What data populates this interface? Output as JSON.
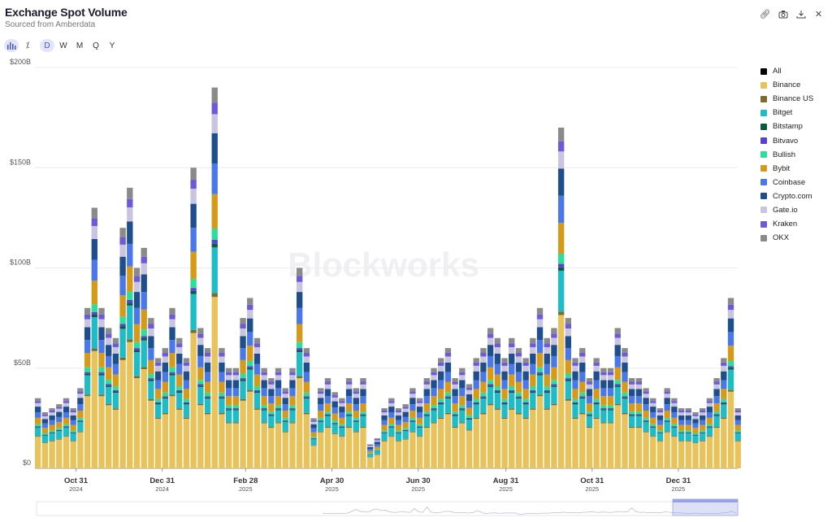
{
  "header": {
    "title": "Exchange Spot Volume",
    "subtitle": "Sourced from Amberdata"
  },
  "controls": {
    "chart_type_icon": "bar-chart-icon",
    "percent_icon": "percent-icon",
    "intervals": [
      "D",
      "W",
      "M",
      "Q",
      "Y"
    ],
    "active_interval": "D"
  },
  "actions": [
    {
      "icon": "link-icon"
    },
    {
      "icon": "camera-icon"
    },
    {
      "icon": "download-icon"
    },
    {
      "icon": "close-icon"
    }
  ],
  "watermark": "Blockworks",
  "chart_data": {
    "type": "bar",
    "stacked": true,
    "title": "Exchange Spot Volume",
    "xlabel": "",
    "ylabel": "",
    "ylim": [
      0,
      200
    ],
    "y_ticks": [
      "$0",
      "$50B",
      "$100B",
      "$150B",
      "$200B"
    ],
    "y_tick_values": [
      0,
      50,
      100,
      150,
      200
    ],
    "x_ticks": [
      {
        "label": "Oct 31",
        "year": "2024",
        "date": "2024-10-31"
      },
      {
        "label": "Dec 31",
        "year": "2024",
        "date": "2024-12-31"
      },
      {
        "label": "Feb 28",
        "year": "2025",
        "date": "2025-02-28"
      },
      {
        "label": "Apr 30",
        "year": "2025",
        "date": "2025-04-30"
      },
      {
        "label": "Jun 30",
        "year": "2025",
        "date": "2025-06-30"
      },
      {
        "label": "Aug 31",
        "year": "2025",
        "date": "2025-08-31"
      },
      {
        "label": "Oct 31",
        "year": "2025",
        "date": "2025-10-31"
      },
      {
        "label": "Dec 31",
        "year": "2025",
        "date": "2025-12-31"
      }
    ],
    "x_range": [
      "2024-10-02",
      "2026-02-11"
    ],
    "grid": true,
    "legend_position": "right",
    "unit": "USD billions",
    "legend": [
      {
        "name": "All",
        "color": "#000000"
      },
      {
        "name": "Binance",
        "color": "#e8c25a"
      },
      {
        "name": "Binance US",
        "color": "#7d6b2e"
      },
      {
        "name": "Bitget",
        "color": "#1fbcc6"
      },
      {
        "name": "Bitstamp",
        "color": "#0f5a3e"
      },
      {
        "name": "Bitvavo",
        "color": "#5b3fd6"
      },
      {
        "name": "Bullish",
        "color": "#2fdc9a"
      },
      {
        "name": "Bybit",
        "color": "#d69a1a"
      },
      {
        "name": "Coinbase",
        "color": "#4a78e8"
      },
      {
        "name": "Crypto.com",
        "color": "#1e4f8c"
      },
      {
        "name": "Gate.io",
        "color": "#c9c4e0"
      },
      {
        "name": "Kraken",
        "color": "#6c5ad8"
      },
      {
        "name": "OKX",
        "color": "#8a8a8a"
      }
    ],
    "series_share_pct": {
      "Binance": 45,
      "Binance US": 1,
      "Bitget": 12,
      "Bitstamp": 1,
      "Bitvavo": 1,
      "Bullish": 3,
      "Bybit": 9,
      "Coinbase": 8,
      "Crypto.com": 8,
      "Gate.io": 5,
      "Kraken": 3,
      "OKX": 4
    },
    "x": [
      "2024-10-02",
      "2024-10-07",
      "2024-10-12",
      "2024-10-17",
      "2024-10-22",
      "2024-10-27",
      "2024-11-01",
      "2024-11-06",
      "2024-11-11",
      "2024-11-16",
      "2024-11-21",
      "2024-11-26",
      "2024-12-01",
      "2024-12-06",
      "2024-12-11",
      "2024-12-16",
      "2024-12-21",
      "2024-12-26",
      "2024-12-31",
      "2025-01-05",
      "2025-01-10",
      "2025-01-15",
      "2025-01-20",
      "2025-01-25",
      "2025-01-30",
      "2025-02-04",
      "2025-02-09",
      "2025-02-14",
      "2025-02-19",
      "2025-02-24",
      "2025-03-01",
      "2025-03-06",
      "2025-03-11",
      "2025-03-16",
      "2025-03-21",
      "2025-03-26",
      "2025-03-31",
      "2025-04-05",
      "2025-04-10",
      "2025-04-15",
      "2025-04-20",
      "2025-04-25",
      "2025-04-30",
      "2025-05-05",
      "2025-05-10",
      "2025-05-15",
      "2025-05-20",
      "2025-05-25",
      "2025-05-30",
      "2025-06-04",
      "2025-06-09",
      "2025-06-14",
      "2025-06-19",
      "2025-06-24",
      "2025-06-29",
      "2025-07-04",
      "2025-07-09",
      "2025-07-14",
      "2025-07-19",
      "2025-07-24",
      "2025-07-29",
      "2025-08-03",
      "2025-08-08",
      "2025-08-13",
      "2025-08-18",
      "2025-08-23",
      "2025-08-28",
      "2025-09-02",
      "2025-09-07",
      "2025-09-12",
      "2025-09-17",
      "2025-09-22",
      "2025-09-27",
      "2025-10-02",
      "2025-10-07",
      "2025-10-12",
      "2025-10-17",
      "2025-10-22",
      "2025-10-27",
      "2025-11-01",
      "2025-11-06",
      "2025-11-11",
      "2025-11-16",
      "2025-11-21",
      "2025-11-26",
      "2025-12-01",
      "2025-12-06",
      "2025-12-11",
      "2025-12-16",
      "2025-12-21",
      "2025-12-26",
      "2025-12-31",
      "2026-01-05",
      "2026-01-10",
      "2026-01-15",
      "2026-01-20",
      "2026-01-25",
      "2026-01-30",
      "2026-02-04",
      "2026-02-09"
    ],
    "totals": [
      35,
      28,
      30,
      32,
      35,
      30,
      40,
      80,
      130,
      80,
      70,
      65,
      120,
      140,
      100,
      110,
      75,
      55,
      60,
      80,
      65,
      55,
      150,
      70,
      60,
      190,
      60,
      50,
      50,
      75,
      85,
      65,
      50,
      45,
      50,
      40,
      50,
      100,
      60,
      25,
      40,
      45,
      38,
      35,
      45,
      40,
      45,
      12,
      15,
      30,
      35,
      30,
      32,
      40,
      35,
      45,
      50,
      55,
      60,
      45,
      50,
      42,
      55,
      60,
      70,
      65,
      55,
      65,
      60,
      55,
      65,
      80,
      65,
      70,
      170,
      75,
      55,
      60,
      45,
      55,
      50,
      50,
      70,
      60,
      45,
      45,
      40,
      35,
      30,
      40,
      35,
      30,
      30,
      28,
      30,
      35,
      45,
      55,
      85,
      30
    ]
  },
  "navigator": {
    "label": "range-navigator"
  }
}
